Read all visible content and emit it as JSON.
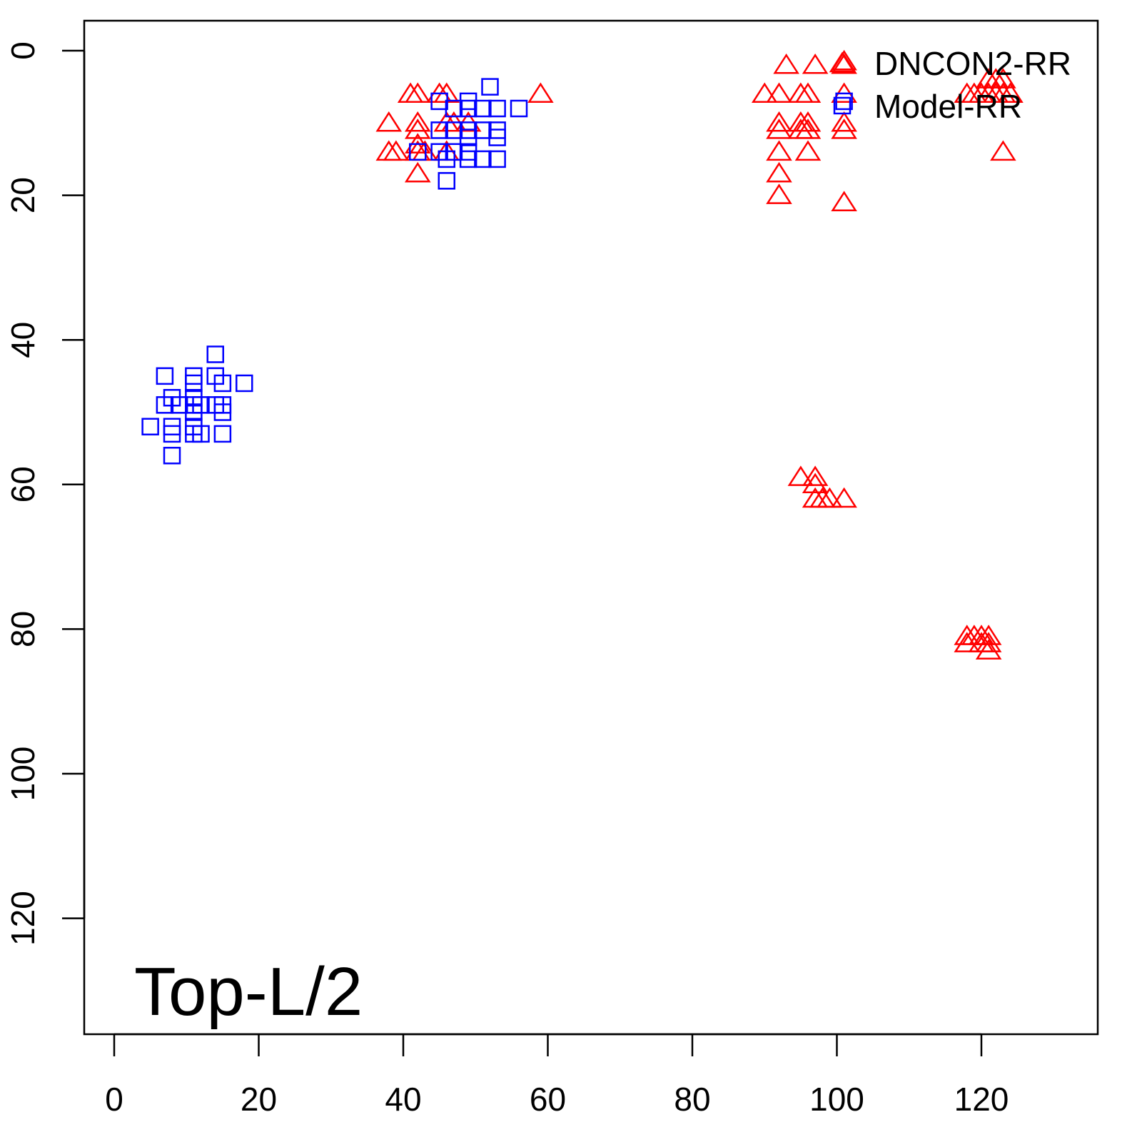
{
  "chart_data": {
    "type": "scatter",
    "title": "",
    "xlabel": "",
    "ylabel": "",
    "xlim": [
      -4.2,
      136
    ],
    "ylim": [
      136,
      -4.2
    ],
    "y_inverted": true,
    "grid": false,
    "x_ticks": [
      0,
      20,
      40,
      60,
      80,
      100,
      120
    ],
    "y_ticks": [
      0,
      20,
      40,
      60,
      80,
      100,
      120
    ],
    "annotation": "Top-L/2",
    "legend_position": "top-right",
    "series": [
      {
        "name": "DNCON2-RR",
        "marker": "triangle",
        "color": "#ff0000",
        "points": [
          [
            41,
            6
          ],
          [
            42,
            6
          ],
          [
            45,
            6
          ],
          [
            46,
            6
          ],
          [
            59,
            6
          ],
          [
            38,
            10
          ],
          [
            42,
            10
          ],
          [
            46,
            10
          ],
          [
            47,
            10
          ],
          [
            49,
            10
          ],
          [
            42,
            11
          ],
          [
            42,
            13
          ],
          [
            38,
            14
          ],
          [
            39,
            14
          ],
          [
            42,
            14
          ],
          [
            43,
            14
          ],
          [
            46,
            14
          ],
          [
            42,
            17
          ],
          [
            93,
            2
          ],
          [
            97,
            2
          ],
          [
            101,
            1.5
          ],
          [
            101,
            2
          ],
          [
            90,
            6
          ],
          [
            92,
            6
          ],
          [
            95,
            6
          ],
          [
            96,
            6
          ],
          [
            101,
            6
          ],
          [
            92,
            10
          ],
          [
            95,
            10
          ],
          [
            96,
            10
          ],
          [
            92,
            11
          ],
          [
            95,
            11
          ],
          [
            96,
            11
          ],
          [
            101,
            10
          ],
          [
            101,
            11
          ],
          [
            92,
            14
          ],
          [
            96,
            14
          ],
          [
            92,
            17
          ],
          [
            92,
            20
          ],
          [
            101,
            21
          ],
          [
            121,
            4
          ],
          [
            122,
            4
          ],
          [
            123,
            4
          ],
          [
            118,
            6
          ],
          [
            119,
            6
          ],
          [
            120,
            6
          ],
          [
            121,
            6
          ],
          [
            122,
            6
          ],
          [
            123,
            6
          ],
          [
            124,
            6
          ],
          [
            123,
            14
          ],
          [
            95,
            59
          ],
          [
            97,
            59
          ],
          [
            97,
            60
          ],
          [
            97,
            62
          ],
          [
            98,
            62
          ],
          [
            99,
            62
          ],
          [
            101,
            62
          ],
          [
            118,
            81
          ],
          [
            119,
            81
          ],
          [
            120,
            81
          ],
          [
            121,
            81
          ],
          [
            118,
            82
          ],
          [
            120,
            82
          ],
          [
            121,
            82
          ],
          [
            121,
            83
          ]
        ]
      },
      {
        "name": "Model-RR",
        "marker": "square",
        "color": "#0000ff",
        "points": [
          [
            14,
            42
          ],
          [
            7,
            45
          ],
          [
            11,
            45
          ],
          [
            14,
            45
          ],
          [
            11,
            46
          ],
          [
            15,
            46
          ],
          [
            18,
            46
          ],
          [
            8,
            48
          ],
          [
            11,
            48
          ],
          [
            7,
            49
          ],
          [
            9,
            49
          ],
          [
            11,
            49
          ],
          [
            12,
            49
          ],
          [
            15,
            49
          ],
          [
            14,
            49
          ],
          [
            11,
            50
          ],
          [
            15,
            50
          ],
          [
            5,
            52
          ],
          [
            8,
            52
          ],
          [
            11,
            52
          ],
          [
            8,
            53
          ],
          [
            11,
            53
          ],
          [
            12,
            53
          ],
          [
            15,
            53
          ],
          [
            8,
            56
          ],
          [
            45,
            7
          ],
          [
            49,
            7
          ],
          [
            52,
            5
          ],
          [
            47,
            8
          ],
          [
            49,
            8
          ],
          [
            51,
            8
          ],
          [
            53,
            8
          ],
          [
            56,
            8
          ],
          [
            45,
            11
          ],
          [
            47,
            11
          ],
          [
            49,
            11
          ],
          [
            51,
            11
          ],
          [
            53,
            11
          ],
          [
            49,
            12
          ],
          [
            53,
            12
          ],
          [
            45,
            14
          ],
          [
            42,
            14
          ],
          [
            47,
            14
          ],
          [
            49,
            14
          ],
          [
            46,
            15
          ],
          [
            49,
            15
          ],
          [
            51,
            15
          ],
          [
            53,
            15
          ],
          [
            46,
            18
          ],
          [
            101,
            7
          ]
        ]
      }
    ]
  }
}
